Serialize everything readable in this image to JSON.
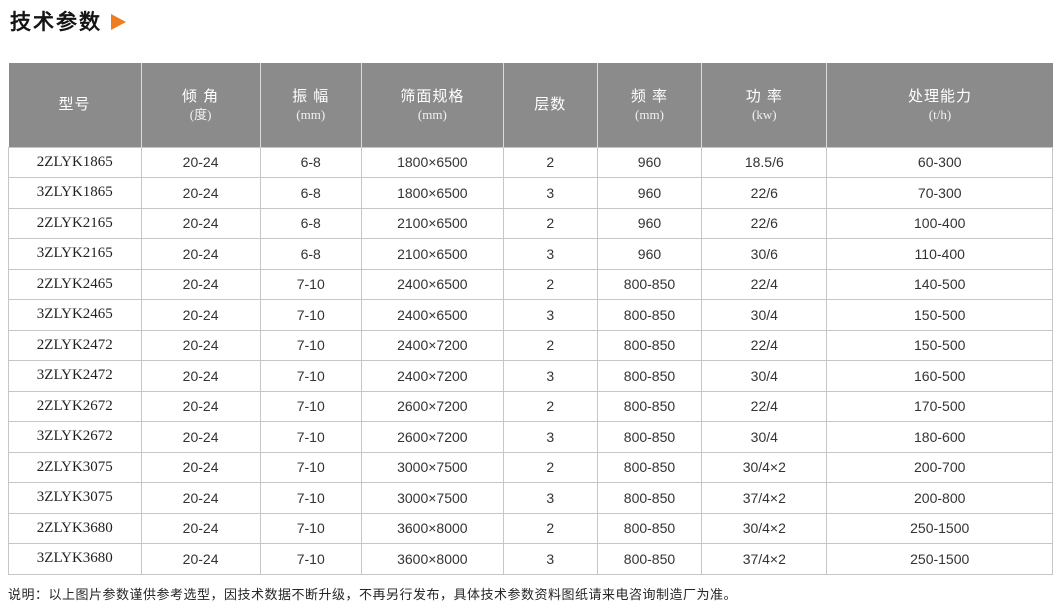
{
  "page": {
    "title": "技术参数",
    "footnote": "说明：以上图片参数谨供参考选型，因技术数据不断升级，不再另行发布，具体技术参数资料图纸请来电咨询制造厂为准。"
  },
  "colors": {
    "accent": "#ed7d1f",
    "table_header_bg": "#8b8b8b",
    "table_header_text": "#ffffff",
    "grid_line": "#c6c6c6",
    "body_text": "#333333"
  },
  "icons": {
    "title_arrow": "right-triangle"
  },
  "table": {
    "columns": [
      {
        "label": "型号",
        "unit": ""
      },
      {
        "label": "倾 角",
        "unit": "(度)"
      },
      {
        "label": "振 幅",
        "unit": "(mm)"
      },
      {
        "label": "筛面规格",
        "unit": "(mm)"
      },
      {
        "label": "层数",
        "unit": ""
      },
      {
        "label": "频 率",
        "unit": "(mm)"
      },
      {
        "label": "功 率",
        "unit": "(kw)"
      },
      {
        "label": "处理能力",
        "unit": "(t/h)"
      }
    ],
    "rows": [
      [
        "2ZLYK1865",
        "20-24",
        "6-8",
        "1800×6500",
        "2",
        "960",
        "18.5/6",
        "60-300"
      ],
      [
        "3ZLYK1865",
        "20-24",
        "6-8",
        "1800×6500",
        "3",
        "960",
        "22/6",
        "70-300"
      ],
      [
        "2ZLYK2165",
        "20-24",
        "6-8",
        "2100×6500",
        "2",
        "960",
        "22/6",
        "100-400"
      ],
      [
        "3ZLYK2165",
        "20-24",
        "6-8",
        "2100×6500",
        "3",
        "960",
        "30/6",
        "110-400"
      ],
      [
        "2ZLYK2465",
        "20-24",
        "7-10",
        "2400×6500",
        "2",
        "800-850",
        "22/4",
        "140-500"
      ],
      [
        "3ZLYK2465",
        "20-24",
        "7-10",
        "2400×6500",
        "3",
        "800-850",
        "30/4",
        "150-500"
      ],
      [
        "2ZLYK2472",
        "20-24",
        "7-10",
        "2400×7200",
        "2",
        "800-850",
        "22/4",
        "150-500"
      ],
      [
        "3ZLYK2472",
        "20-24",
        "7-10",
        "2400×7200",
        "3",
        "800-850",
        "30/4",
        "160-500"
      ],
      [
        "2ZLYK2672",
        "20-24",
        "7-10",
        "2600×7200",
        "2",
        "800-850",
        "22/4",
        "170-500"
      ],
      [
        "3ZLYK2672",
        "20-24",
        "7-10",
        "2600×7200",
        "3",
        "800-850",
        "30/4",
        "180-600"
      ],
      [
        "2ZLYK3075",
        "20-24",
        "7-10",
        "3000×7500",
        "2",
        "800-850",
        "30/4×2",
        "200-700"
      ],
      [
        "3ZLYK3075",
        "20-24",
        "7-10",
        "3000×7500",
        "3",
        "800-850",
        "37/4×2",
        "200-800"
      ],
      [
        "2ZLYK3680",
        "20-24",
        "7-10",
        "3600×8000",
        "2",
        "800-850",
        "30/4×2",
        "250-1500"
      ],
      [
        "3ZLYK3680",
        "20-24",
        "7-10",
        "3600×8000",
        "3",
        "800-850",
        "37/4×2",
        "250-1500"
      ]
    ]
  }
}
